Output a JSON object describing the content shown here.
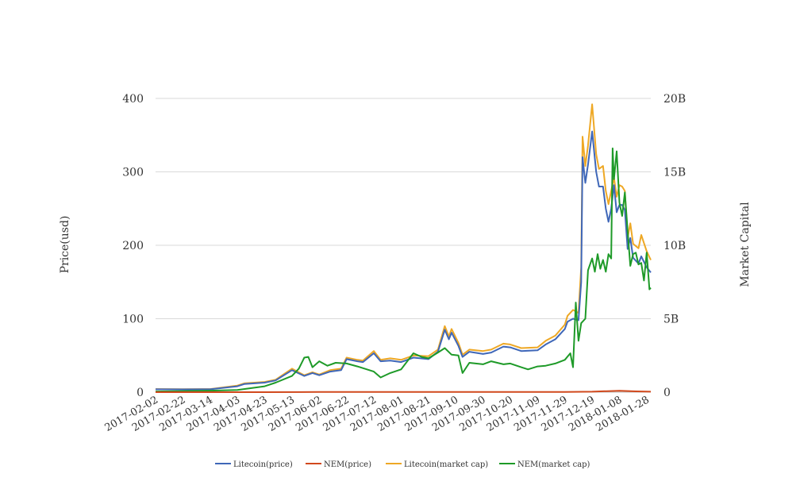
{
  "chart_data": {
    "type": "line",
    "ylabel": "Price(usd)",
    "y2label": "Market Capital",
    "ylim": [
      0,
      400
    ],
    "y2lim": [
      0,
      20000000000
    ],
    "y_ticks": [
      "0",
      "100",
      "200",
      "300",
      "400"
    ],
    "y2_ticks": [
      "0",
      "5B",
      "10B",
      "15B",
      "20B"
    ],
    "x_ticks": [
      "2017-02-02",
      "2017-02-22",
      "2017-03-14",
      "2017-04-03",
      "2017-04-23",
      "2017-05-13",
      "2017-06-02",
      "2017-06-22",
      "2017-07-12",
      "2017-08-01",
      "2017-08-21",
      "2017-09-10",
      "2017-09-30",
      "2017-10-20",
      "2017-11-09",
      "2017-11-29",
      "2017-12-19",
      "2018-01-08",
      "2018-01-28"
    ],
    "grid": true,
    "legend_position": "bottom",
    "series": [
      {
        "name": "Litecoin(price)",
        "color": "#3f67b8",
        "axis": "left",
        "points": [
          [
            "2017-02-02",
            3.9
          ],
          [
            "2017-02-22",
            3.8
          ],
          [
            "2017-03-14",
            3.9
          ],
          [
            "2017-04-03",
            8
          ],
          [
            "2017-04-08",
            11
          ],
          [
            "2017-04-23",
            13
          ],
          [
            "2017-05-01",
            16
          ],
          [
            "2017-05-13",
            30
          ],
          [
            "2017-05-22",
            22
          ],
          [
            "2017-05-28",
            26
          ],
          [
            "2017-06-02",
            23
          ],
          [
            "2017-06-10",
            28
          ],
          [
            "2017-06-18",
            30
          ],
          [
            "2017-06-22",
            45
          ],
          [
            "2017-06-30",
            42
          ],
          [
            "2017-07-04",
            41
          ],
          [
            "2017-07-12",
            53
          ],
          [
            "2017-07-17",
            42
          ],
          [
            "2017-07-24",
            43
          ],
          [
            "2017-08-01",
            41
          ],
          [
            "2017-08-10",
            47
          ],
          [
            "2017-08-21",
            45
          ],
          [
            "2017-08-28",
            55
          ],
          [
            "2017-09-02",
            85
          ],
          [
            "2017-09-05",
            72
          ],
          [
            "2017-09-07",
            81
          ],
          [
            "2017-09-12",
            63
          ],
          [
            "2017-09-15",
            48
          ],
          [
            "2017-09-20",
            55
          ],
          [
            "2017-09-30",
            52
          ],
          [
            "2017-10-06",
            54
          ],
          [
            "2017-10-15",
            62
          ],
          [
            "2017-10-20",
            61
          ],
          [
            "2017-10-28",
            56
          ],
          [
            "2017-11-09",
            57
          ],
          [
            "2017-11-15",
            65
          ],
          [
            "2017-11-22",
            72
          ],
          [
            "2017-11-29",
            86
          ],
          [
            "2017-12-01",
            96
          ],
          [
            "2017-12-05",
            100
          ],
          [
            "2017-12-09",
            98
          ],
          [
            "2017-12-11",
            150
          ],
          [
            "2017-12-12",
            320
          ],
          [
            "2017-12-14",
            285
          ],
          [
            "2017-12-16",
            310
          ],
          [
            "2017-12-19",
            355
          ],
          [
            "2017-12-22",
            300
          ],
          [
            "2017-12-24",
            280
          ],
          [
            "2017-12-27",
            280
          ],
          [
            "2017-12-29",
            250
          ],
          [
            "2017-12-31",
            232
          ],
          [
            "2018-01-02",
            250
          ],
          [
            "2018-01-04",
            282
          ],
          [
            "2018-01-06",
            245
          ],
          [
            "2018-01-08",
            255
          ],
          [
            "2018-01-10",
            255
          ],
          [
            "2018-01-12",
            248
          ],
          [
            "2018-01-14",
            195
          ],
          [
            "2018-01-16",
            210
          ],
          [
            "2018-01-18",
            183
          ],
          [
            "2018-01-22",
            175
          ],
          [
            "2018-01-24",
            185
          ],
          [
            "2018-01-28",
            170
          ],
          [
            "2018-01-31",
            163
          ]
        ]
      },
      {
        "name": "NEM(price)",
        "color": "#d1491d",
        "axis": "left",
        "points": [
          [
            "2017-02-02",
            0.004
          ],
          [
            "2017-04-23",
            0.01
          ],
          [
            "2017-06-02",
            0.2
          ],
          [
            "2017-08-21",
            0.25
          ],
          [
            "2017-10-20",
            0.2
          ],
          [
            "2017-11-29",
            0.3
          ],
          [
            "2017-12-19",
            0.7
          ],
          [
            "2018-01-08",
            1.9
          ],
          [
            "2018-01-20",
            1.1
          ],
          [
            "2018-01-31",
            0.7
          ]
        ]
      },
      {
        "name": "Litecoin(market cap)",
        "color": "#eea825",
        "axis": "right",
        "points": [
          [
            "2017-02-02",
            210000000
          ],
          [
            "2017-02-22",
            200000000
          ],
          [
            "2017-03-14",
            210000000
          ],
          [
            "2017-04-03",
            450000000
          ],
          [
            "2017-04-08",
            600000000
          ],
          [
            "2017-04-23",
            700000000
          ],
          [
            "2017-05-01",
            850000000
          ],
          [
            "2017-05-13",
            1600000000
          ],
          [
            "2017-05-22",
            1150000000
          ],
          [
            "2017-05-28",
            1350000000
          ],
          [
            "2017-06-02",
            1200000000
          ],
          [
            "2017-06-10",
            1500000000
          ],
          [
            "2017-06-18",
            1600000000
          ],
          [
            "2017-06-22",
            2350000000
          ],
          [
            "2017-06-30",
            2200000000
          ],
          [
            "2017-07-04",
            2150000000
          ],
          [
            "2017-07-12",
            2800000000
          ],
          [
            "2017-07-17",
            2200000000
          ],
          [
            "2017-07-24",
            2300000000
          ],
          [
            "2017-08-01",
            2200000000
          ],
          [
            "2017-08-10",
            2500000000
          ],
          [
            "2017-08-21",
            2450000000
          ],
          [
            "2017-08-28",
            2900000000
          ],
          [
            "2017-09-02",
            4500000000
          ],
          [
            "2017-09-05",
            3800000000
          ],
          [
            "2017-09-07",
            4300000000
          ],
          [
            "2017-09-12",
            3350000000
          ],
          [
            "2017-09-15",
            2550000000
          ],
          [
            "2017-09-20",
            2900000000
          ],
          [
            "2017-09-30",
            2800000000
          ],
          [
            "2017-10-06",
            2900000000
          ],
          [
            "2017-10-15",
            3300000000
          ],
          [
            "2017-10-20",
            3250000000
          ],
          [
            "2017-10-28",
            3000000000
          ],
          [
            "2017-11-09",
            3050000000
          ],
          [
            "2017-11-15",
            3500000000
          ],
          [
            "2017-11-22",
            3850000000
          ],
          [
            "2017-11-29",
            4600000000
          ],
          [
            "2017-12-01",
            5200000000
          ],
          [
            "2017-12-05",
            5600000000
          ],
          [
            "2017-12-09",
            5400000000
          ],
          [
            "2017-12-11",
            8500000000
          ],
          [
            "2017-12-12",
            17400000000
          ],
          [
            "2017-12-14",
            15400000000
          ],
          [
            "2017-12-16",
            16800000000
          ],
          [
            "2017-12-19",
            19600000000
          ],
          [
            "2017-12-22",
            16200000000
          ],
          [
            "2017-12-24",
            15200000000
          ],
          [
            "2017-12-27",
            15400000000
          ],
          [
            "2017-12-29",
            13700000000
          ],
          [
            "2017-12-31",
            12800000000
          ],
          [
            "2018-01-02",
            13700000000
          ],
          [
            "2018-01-04",
            14600000000
          ],
          [
            "2018-01-06",
            13300000000
          ],
          [
            "2018-01-08",
            14100000000
          ],
          [
            "2018-01-10",
            14000000000
          ],
          [
            "2018-01-12",
            13700000000
          ],
          [
            "2018-01-14",
            10500000000
          ],
          [
            "2018-01-16",
            11500000000
          ],
          [
            "2018-01-18",
            10100000000
          ],
          [
            "2018-01-22",
            9800000000
          ],
          [
            "2018-01-24",
            10700000000
          ],
          [
            "2018-01-28",
            9600000000
          ],
          [
            "2018-01-31",
            9000000000
          ]
        ]
      },
      {
        "name": "NEM(market cap)",
        "color": "#1e9a28",
        "axis": "right",
        "points": [
          [
            "2017-02-02",
            50000000
          ],
          [
            "2017-03-14",
            100000000
          ],
          [
            "2017-04-03",
            150000000
          ],
          [
            "2017-04-23",
            400000000
          ],
          [
            "2017-05-01",
            650000000
          ],
          [
            "2017-05-13",
            1100000000
          ],
          [
            "2017-05-18",
            1600000000
          ],
          [
            "2017-05-22",
            2350000000
          ],
          [
            "2017-05-25",
            2400000000
          ],
          [
            "2017-05-28",
            1700000000
          ],
          [
            "2017-06-02",
            2100000000
          ],
          [
            "2017-06-08",
            1800000000
          ],
          [
            "2017-06-14",
            2000000000
          ],
          [
            "2017-06-22",
            1950000000
          ],
          [
            "2017-06-30",
            1750000000
          ],
          [
            "2017-07-12",
            1400000000
          ],
          [
            "2017-07-17",
            1000000000
          ],
          [
            "2017-07-24",
            1300000000
          ],
          [
            "2017-08-01",
            1550000000
          ],
          [
            "2017-08-10",
            2650000000
          ],
          [
            "2017-08-16",
            2400000000
          ],
          [
            "2017-08-21",
            2300000000
          ],
          [
            "2017-08-28",
            2700000000
          ],
          [
            "2017-09-02",
            3000000000
          ],
          [
            "2017-09-07",
            2550000000
          ],
          [
            "2017-09-12",
            2500000000
          ],
          [
            "2017-09-15",
            1300000000
          ],
          [
            "2017-09-20",
            2000000000
          ],
          [
            "2017-09-30",
            1900000000
          ],
          [
            "2017-10-06",
            2100000000
          ],
          [
            "2017-10-15",
            1900000000
          ],
          [
            "2017-10-20",
            1950000000
          ],
          [
            "2017-10-28",
            1700000000
          ],
          [
            "2017-11-02",
            1550000000
          ],
          [
            "2017-11-09",
            1750000000
          ],
          [
            "2017-11-15",
            1800000000
          ],
          [
            "2017-11-22",
            1950000000
          ],
          [
            "2017-11-29",
            2200000000
          ],
          [
            "2017-12-03",
            2650000000
          ],
          [
            "2017-12-05",
            1700000000
          ],
          [
            "2017-12-07",
            6100000000
          ],
          [
            "2017-12-09",
            3500000000
          ],
          [
            "2017-12-11",
            4700000000
          ],
          [
            "2017-12-14",
            5000000000
          ],
          [
            "2017-12-16",
            8300000000
          ],
          [
            "2017-12-19",
            9100000000
          ],
          [
            "2017-12-21",
            8200000000
          ],
          [
            "2017-12-23",
            9400000000
          ],
          [
            "2017-12-25",
            8400000000
          ],
          [
            "2017-12-27",
            9000000000
          ],
          [
            "2017-12-29",
            8200000000
          ],
          [
            "2017-12-31",
            9400000000
          ],
          [
            "2018-01-02",
            9100000000
          ],
          [
            "2018-01-03",
            16600000000
          ],
          [
            "2018-01-04",
            14500000000
          ],
          [
            "2018-01-06",
            16400000000
          ],
          [
            "2018-01-08",
            12900000000
          ],
          [
            "2018-01-10",
            12000000000
          ],
          [
            "2018-01-12",
            13600000000
          ],
          [
            "2018-01-14",
            11000000000
          ],
          [
            "2018-01-16",
            8600000000
          ],
          [
            "2018-01-18",
            9400000000
          ],
          [
            "2018-01-20",
            9500000000
          ],
          [
            "2018-01-22",
            8700000000
          ],
          [
            "2018-01-24",
            8800000000
          ],
          [
            "2018-01-26",
            7600000000
          ],
          [
            "2018-01-28",
            9500000000
          ],
          [
            "2018-01-30",
            7000000000
          ],
          [
            "2018-01-31",
            7100000000
          ]
        ]
      }
    ]
  }
}
